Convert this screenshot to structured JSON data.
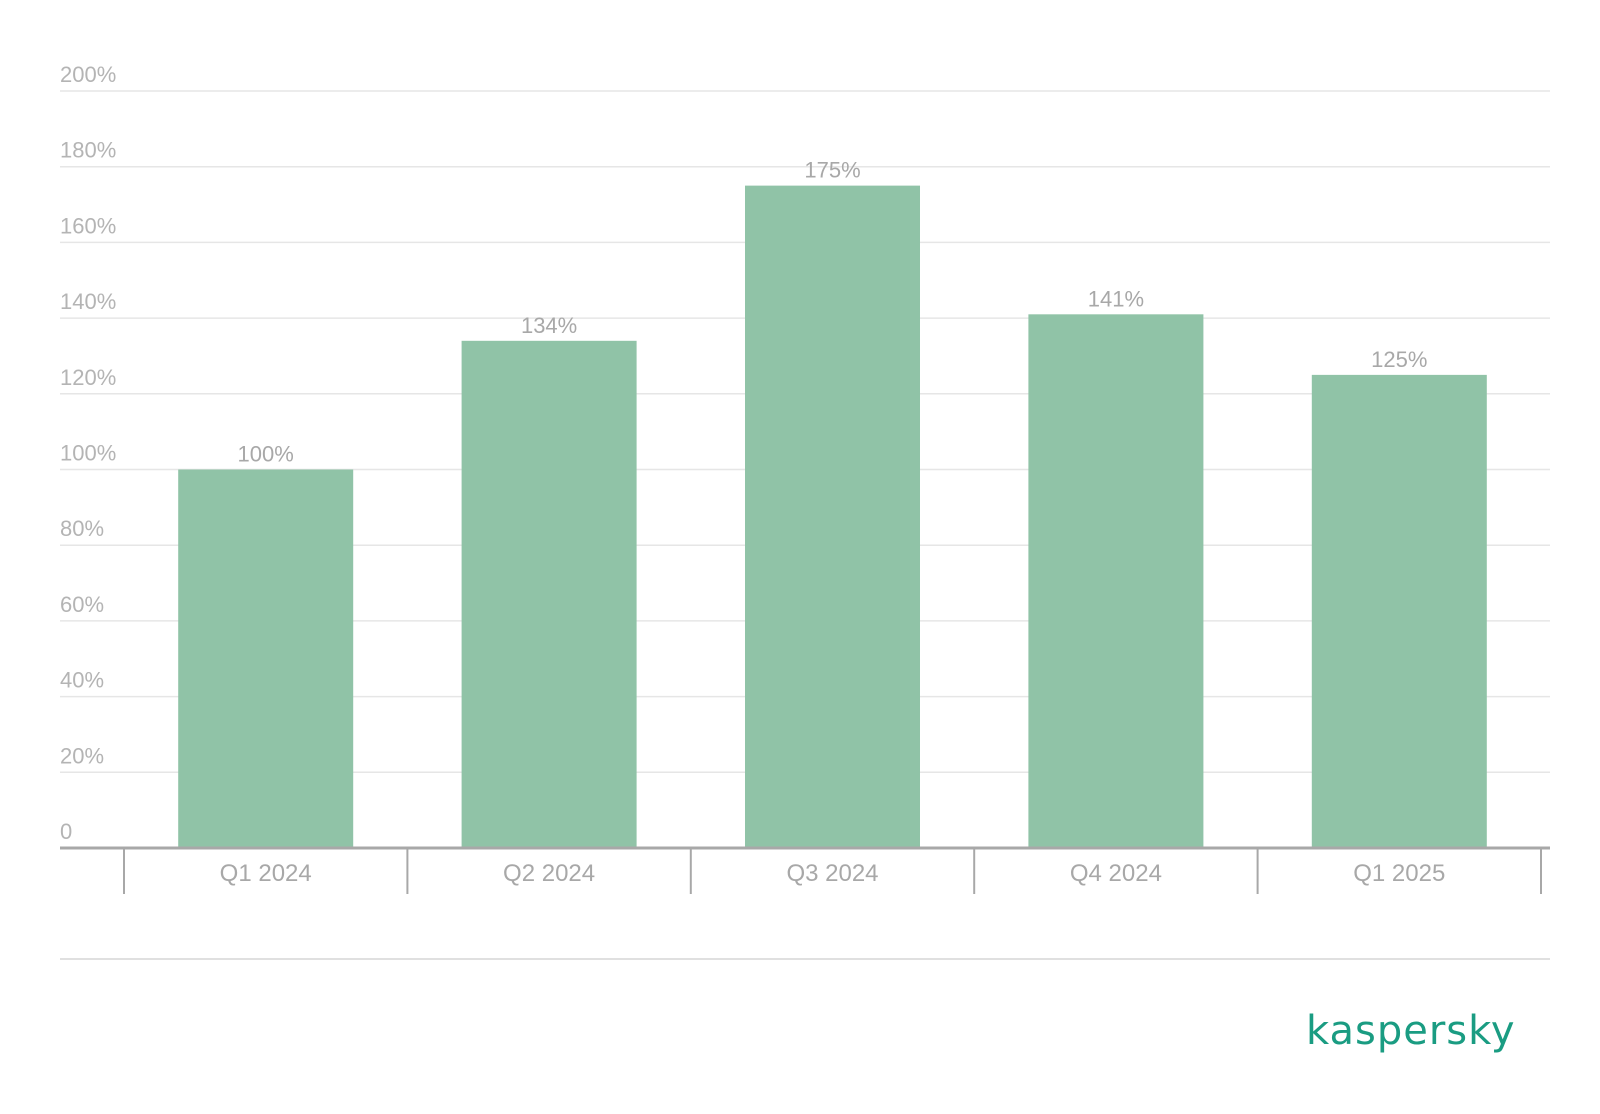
{
  "chart_data": {
    "type": "bar",
    "categories": [
      "Q1 2024",
      "Q2 2024",
      "Q3 2024",
      "Q4 2024",
      "Q1 2025"
    ],
    "values": [
      100,
      134,
      175,
      141,
      125
    ],
    "value_labels": [
      "100%",
      "134%",
      "175%",
      "141%",
      "125%"
    ],
    "title": "",
    "xlabel": "",
    "ylabel": "",
    "ylim": [
      0,
      200
    ],
    "yticks": [
      0,
      20,
      40,
      60,
      80,
      100,
      120,
      140,
      160,
      180,
      200
    ],
    "ytick_labels": [
      "0",
      "20%",
      "40%",
      "60%",
      "80%",
      "100%",
      "120%",
      "140%",
      "160%",
      "180%",
      "200%"
    ],
    "grid": true,
    "legend": "none",
    "colors": {
      "bar": "#90c3a7",
      "grid": "#e6e6e6",
      "axis": "#a8a8a8",
      "text": "#a8a8a8"
    }
  },
  "brand": {
    "logo_text": "kaspersky",
    "color": "#1a9c82"
  }
}
